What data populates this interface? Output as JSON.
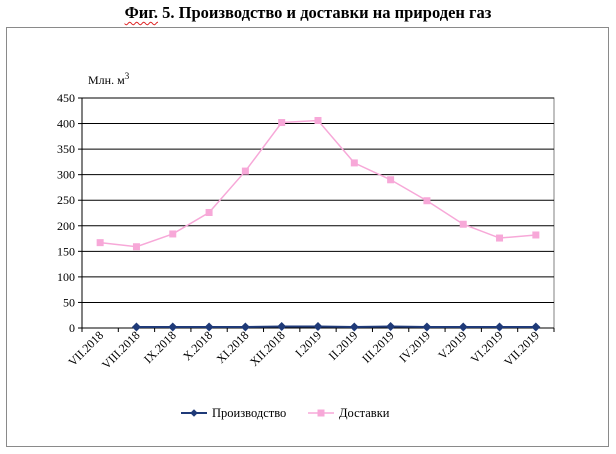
{
  "figure": {
    "title_prefix": "Фиг.",
    "title_rest": " 5. Производство и доставки на природен газ"
  },
  "chart_data": {
    "type": "line",
    "title": "Фиг. 5. Производство и доставки на природен газ",
    "ylabel": "Млн. м",
    "ylabel_superscript": "3",
    "ylim": [
      0,
      450
    ],
    "ytick_step": 50,
    "grid": true,
    "legend_position": "bottom",
    "categories": [
      "VII.2018",
      "VIII.2018",
      "IX.2018",
      "X.2018",
      "XI.2018",
      "XII.2018",
      "I.2019",
      "II.2019",
      "III.2019",
      "IV.2019",
      "V.2019",
      "VI.2019",
      "VII.2019"
    ],
    "series": [
      {
        "name": "Производство",
        "color": "#1f3a78",
        "marker": "diamond",
        "values": [
          null,
          2,
          2,
          2,
          2,
          3,
          3,
          2,
          3,
          2,
          2,
          2,
          2
        ]
      },
      {
        "name": "Доставки",
        "color": "#f7a8d8",
        "marker": "square",
        "values": [
          167,
          159,
          184,
          226,
          307,
          402,
          406,
          323,
          290,
          249,
          203,
          176,
          182
        ]
      }
    ]
  }
}
